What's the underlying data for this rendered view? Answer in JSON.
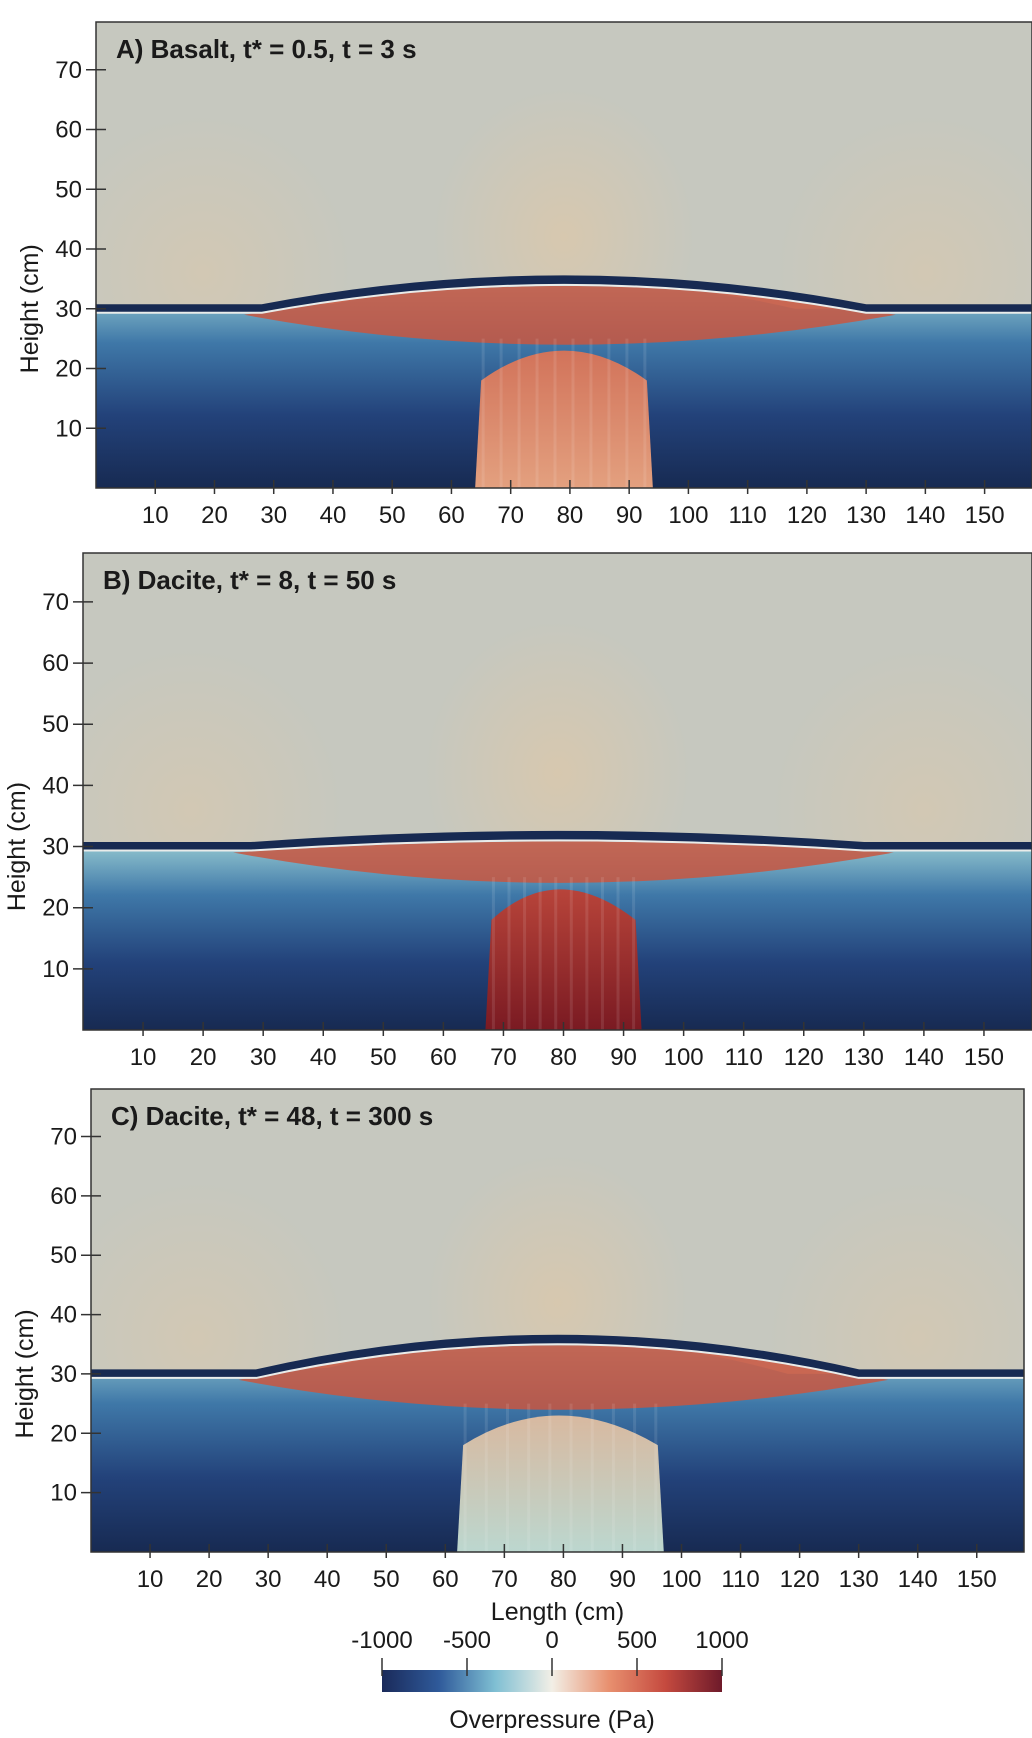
{
  "chart_data": {
    "type": "heatmap",
    "panels": [
      {
        "title": "A) Basalt, t* = 0.5, t = 3 s",
        "ylabel": "Height (cm)",
        "xlabel": "",
        "xlim": [
          0,
          158
        ],
        "ylim": [
          0,
          78
        ],
        "x_ticks": [
          10,
          20,
          30,
          40,
          50,
          60,
          70,
          80,
          90,
          100,
          110,
          120,
          130,
          140,
          150
        ],
        "y_ticks": [
          10,
          20,
          30,
          40,
          50,
          60,
          70
        ],
        "field": {
          "interface_center_cm": 38,
          "interface_edge_cm": 30,
          "plume_x_cm": [
            64,
            94
          ],
          "plume_pressure": "moderate"
        }
      },
      {
        "title": "B) Dacite, t* = 8, t = 50 s",
        "ylabel": "Height (cm)",
        "xlabel": "",
        "xlim": [
          0,
          158
        ],
        "ylim": [
          0,
          78
        ],
        "x_ticks": [
          10,
          20,
          30,
          40,
          50,
          60,
          70,
          80,
          90,
          100,
          110,
          120,
          130,
          140,
          150
        ],
        "y_ticks": [
          10,
          20,
          30,
          40,
          50,
          60,
          70
        ],
        "field": {
          "interface_center_cm": 32,
          "interface_edge_cm": 30,
          "plume_x_cm": [
            67,
            93
          ],
          "plume_pressure": "high"
        }
      },
      {
        "title": "C) Dacite, t* = 48, t = 300 s",
        "ylabel": "Height (cm)",
        "xlabel": "Length (cm)",
        "xlim": [
          0,
          158
        ],
        "ylim": [
          0,
          78
        ],
        "x_ticks": [
          10,
          20,
          30,
          40,
          50,
          60,
          70,
          80,
          90,
          100,
          110,
          120,
          130,
          140,
          150
        ],
        "y_ticks": [
          10,
          20,
          30,
          40,
          50,
          60,
          70
        ],
        "field": {
          "interface_center_cm": 40,
          "interface_edge_cm": 30,
          "plume_x_cm": [
            62,
            97
          ],
          "plume_pressure": "low"
        }
      }
    ],
    "colorbar": {
      "label": "Overpressure (Pa)",
      "range": [
        -1000,
        1000
      ],
      "ticks": [
        -1000,
        -500,
        0,
        500,
        1000
      ],
      "tick_labels": [
        "-1000",
        "-500",
        "0",
        "500",
        "1000"
      ],
      "colormap": [
        "#1a2a5a",
        "#2f5a9a",
        "#7fbfd3",
        "#f2efe6",
        "#e8906f",
        "#c54a3f",
        "#6e1a2a"
      ]
    },
    "colors": {
      "background": "#c6c8bf",
      "upper_warm": "#d9c8ad",
      "deep_blue": "#172a52",
      "mid_blue": "#3f78a8",
      "light_cyan": "#9ccfd4",
      "interface_red": "#c9563f",
      "dark_red": "#7a1a22"
    }
  }
}
